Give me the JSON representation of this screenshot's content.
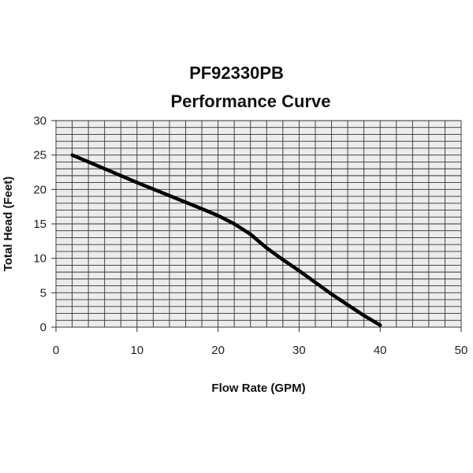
{
  "chart_data": {
    "type": "line",
    "title": "PF92330PB",
    "subtitle": "Performance Curve",
    "xlabel": "Flow Rate (GPM)",
    "ylabel": "Total Head (Feet)",
    "xlim": [
      0,
      50
    ],
    "ylim": [
      0,
      30
    ],
    "xticks": [
      0,
      10,
      20,
      30,
      40,
      50
    ],
    "yticks": [
      0,
      5,
      10,
      15,
      20,
      25,
      30
    ],
    "grid": true,
    "grid_minor_x_step": 2,
    "grid_minor_y_step": 1,
    "series": [
      {
        "name": "PF92330PB",
        "color": "#000000",
        "x": [
          2,
          6,
          10,
          14,
          18,
          20,
          22,
          24,
          26,
          28,
          30,
          34,
          38,
          40
        ],
        "y": [
          25,
          23,
          21,
          19.1,
          17.2,
          16.2,
          15,
          13.5,
          11.5,
          9.8,
          8.2,
          4.8,
          1.7,
          0.3
        ]
      }
    ]
  }
}
